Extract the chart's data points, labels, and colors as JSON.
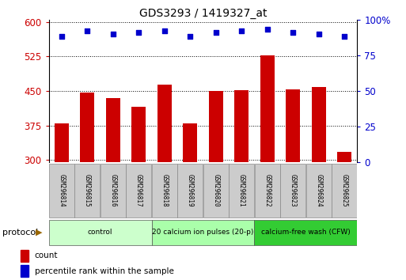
{
  "title": "GDS3293 / 1419327_at",
  "samples": [
    "GSM296814",
    "GSM296815",
    "GSM296816",
    "GSM296817",
    "GSM296818",
    "GSM296819",
    "GSM296820",
    "GSM296821",
    "GSM296822",
    "GSM296823",
    "GSM296824",
    "GSM296825"
  ],
  "counts": [
    380,
    447,
    435,
    415,
    463,
    380,
    450,
    451,
    527,
    453,
    458,
    318
  ],
  "percentiles": [
    88,
    92,
    90,
    91,
    92,
    88,
    91,
    92,
    93,
    91,
    90,
    88
  ],
  "ylim_left": [
    295,
    605
  ],
  "ylim_right": [
    0,
    100
  ],
  "yticks_left": [
    300,
    375,
    450,
    525,
    600
  ],
  "yticks_right": [
    0,
    25,
    50,
    75,
    100
  ],
  "bar_color": "#cc0000",
  "dot_color": "#0000cc",
  "bar_width": 0.55,
  "groups": [
    {
      "label": "control",
      "start": 0,
      "end": 3,
      "color": "#ccffcc"
    },
    {
      "label": "20 calcium ion pulses (20-p)",
      "start": 4,
      "end": 7,
      "color": "#aaffaa"
    },
    {
      "label": "calcium-free wash (CFW)",
      "start": 8,
      "end": 11,
      "color": "#33cc33"
    }
  ],
  "sample_cell_color": "#cccccc",
  "legend_count_color": "#cc0000",
  "legend_dot_color": "#0000cc"
}
